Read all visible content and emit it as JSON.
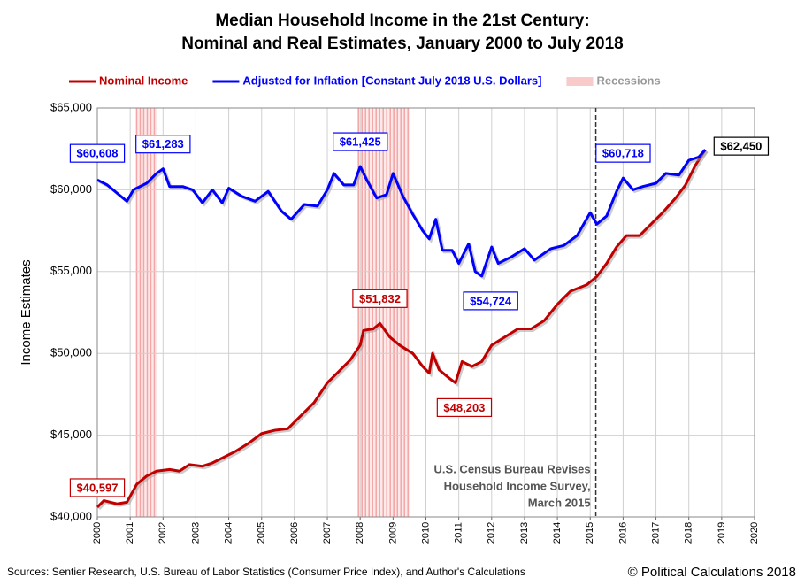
{
  "chart_data": {
    "type": "line",
    "title": [
      "Median Household Income in the 21st Century:",
      "Nominal and Real Estimates, January 2000 to July 2018"
    ],
    "ylabel": "Income Estimates",
    "xlim": [
      2000,
      2020
    ],
    "xticks": [
      2000,
      2001,
      2002,
      2003,
      2004,
      2005,
      2006,
      2007,
      2008,
      2009,
      2010,
      2011,
      2012,
      2013,
      2014,
      2015,
      2016,
      2017,
      2018,
      2019,
      2020
    ],
    "ylim": [
      40000,
      65000
    ],
    "yticks": [
      {
        "value": 40000,
        "label": "$40,000"
      },
      {
        "value": 45000,
        "label": "$45,000"
      },
      {
        "value": 50000,
        "label": "$50,000"
      },
      {
        "value": 55000,
        "label": "$55,000"
      },
      {
        "value": 60000,
        "label": "$60,000"
      },
      {
        "value": 65000,
        "label": "$65,000"
      }
    ],
    "grid": true,
    "legend": "top",
    "series": [
      {
        "name": "Nominal Income",
        "color": "#c00000",
        "x": [
          2000.0,
          2000.2,
          2000.6,
          2000.9,
          2001.2,
          2001.5,
          2001.8,
          2002.2,
          2002.5,
          2002.8,
          2003.2,
          2003.5,
          2003.8,
          2004.2,
          2004.6,
          2005.0,
          2005.4,
          2005.8,
          2006.2,
          2006.6,
          2007.0,
          2007.3,
          2007.7,
          2008.0,
          2008.1,
          2008.4,
          2008.6,
          2008.9,
          2009.2,
          2009.6,
          2009.9,
          2010.1,
          2010.2,
          2010.4,
          2010.7,
          2010.9,
          2011.1,
          2011.4,
          2011.7,
          2012.0,
          2012.4,
          2012.8,
          2013.2,
          2013.6,
          2014.0,
          2014.4,
          2014.9,
          2015.2,
          2015.5,
          2015.8,
          2016.1,
          2016.5,
          2016.9,
          2017.2,
          2017.6,
          2017.9,
          2018.2,
          2018.5
        ],
        "values": [
          40597,
          41000,
          40800,
          40900,
          42000,
          42500,
          42800,
          42900,
          42800,
          43200,
          43100,
          43300,
          43600,
          44000,
          44500,
          45100,
          45300,
          45400,
          46200,
          47000,
          48200,
          48800,
          49600,
          50500,
          51400,
          51500,
          51832,
          51000,
          50500,
          50000,
          49200,
          48800,
          50000,
          49000,
          48500,
          48203,
          49500,
          49200,
          49500,
          50500,
          51000,
          51500,
          51500,
          52000,
          53000,
          53800,
          54200,
          54700,
          55500,
          56500,
          57200,
          57200,
          58000,
          58600,
          59500,
          60300,
          61500,
          62450
        ],
        "value_labels": [
          "$40,597",
          null,
          null,
          null,
          null,
          null,
          null,
          null,
          null,
          null,
          null,
          null,
          null,
          null,
          null,
          null,
          null,
          null,
          null,
          null,
          null,
          null,
          null,
          null,
          null,
          null,
          "$51,832",
          null,
          null,
          null,
          null,
          null,
          null,
          null,
          null,
          "$48,203",
          null,
          null,
          null,
          null,
          null,
          null,
          null,
          null,
          null,
          null,
          null,
          null,
          null,
          null,
          null,
          null,
          null,
          null,
          null,
          null,
          null,
          null
        ]
      },
      {
        "name": "Adjusted for Inflation [Constant July 2018 U.S. Dollars]",
        "color": "#0000ff",
        "x": [
          2000.0,
          2000.3,
          2000.6,
          2000.9,
          2001.1,
          2001.5,
          2001.8,
          2002.0,
          2002.2,
          2002.6,
          2002.9,
          2003.2,
          2003.5,
          2003.8,
          2004.0,
          2004.4,
          2004.8,
          2005.2,
          2005.6,
          2005.9,
          2006.3,
          2006.7,
          2007.0,
          2007.2,
          2007.5,
          2007.8,
          2008.0,
          2008.2,
          2008.5,
          2008.8,
          2009.0,
          2009.3,
          2009.6,
          2009.9,
          2010.1,
          2010.3,
          2010.5,
          2010.8,
          2011.0,
          2011.3,
          2011.5,
          2011.7,
          2012.0,
          2012.2,
          2012.6,
          2013.0,
          2013.3,
          2013.8,
          2014.2,
          2014.6,
          2015.0,
          2015.2,
          2015.5,
          2015.8,
          2016.0,
          2016.3,
          2016.6,
          2017.0,
          2017.3,
          2017.7,
          2018.0,
          2018.3,
          2018.5
        ],
        "values": [
          60608,
          60300,
          59800,
          59300,
          60000,
          60400,
          61000,
          61283,
          60200,
          60200,
          60000,
          59200,
          60000,
          59200,
          60100,
          59600,
          59300,
          59900,
          58700,
          58200,
          59100,
          59000,
          60000,
          61000,
          60300,
          60300,
          61425,
          60600,
          59500,
          59700,
          61000,
          59600,
          58500,
          57500,
          57000,
          58200,
          56300,
          56300,
          55500,
          56700,
          55000,
          54724,
          56500,
          55500,
          55900,
          56400,
          55700,
          56400,
          56600,
          57200,
          58600,
          57900,
          58400,
          59900,
          60718,
          60000,
          60200,
          60400,
          61000,
          60900,
          61800,
          62000,
          62450
        ],
        "value_labels": [
          "$60,608",
          null,
          null,
          null,
          null,
          null,
          null,
          "$61,283",
          null,
          null,
          null,
          null,
          null,
          null,
          null,
          null,
          null,
          null,
          null,
          null,
          null,
          null,
          null,
          null,
          null,
          null,
          "$61,425",
          null,
          null,
          null,
          null,
          null,
          null,
          null,
          null,
          null,
          null,
          null,
          null,
          null,
          null,
          "$54,724",
          null,
          null,
          null,
          null,
          null,
          null,
          null,
          null,
          null,
          null,
          null,
          null,
          "$60,718",
          null,
          null,
          null,
          null,
          null,
          null,
          null,
          "$62,450"
        ]
      }
    ],
    "recessions": {
      "name": "Recessions",
      "color": "#f4a6a6",
      "spans": [
        [
          2001.17,
          2001.83
        ],
        [
          2007.92,
          2009.5
        ]
      ]
    },
    "annotation": {
      "x": 2015.17,
      "lines": [
        "U.S. Census Bureau Revises",
        "Household Income Survey,",
        "March 2015"
      ]
    },
    "sources": "Sources: Sentier Research, U.S. Bureau of Labor Statistics (Consumer  Price Index), and Author's Calculations",
    "copyright": "© Political Calculations 2018"
  }
}
